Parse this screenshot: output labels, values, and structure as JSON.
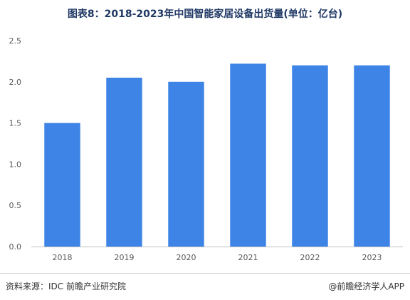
{
  "title": "图表8：2018-2023年中国智能家居设备出货量(单位：亿台)",
  "source": "资料来源：IDC 前瞻产业研究院",
  "credit": "@前瞻经济学人APP",
  "colors": {
    "bar": "#3d84e6",
    "axis": "#bfbfbf",
    "tick_text": "#595959",
    "title": "#1f3864"
  },
  "chart_data": {
    "type": "bar",
    "title": "图表8：2018-2023年中国智能家居设备出货量(单位：亿台)",
    "xlabel": "",
    "ylabel": "",
    "categories": [
      "2018",
      "2019",
      "2020",
      "2021",
      "2022",
      "2023"
    ],
    "values": [
      1.5,
      2.05,
      2.0,
      2.22,
      2.2,
      2.2
    ],
    "ylim": [
      0,
      2.5
    ],
    "yticks": [
      "0.0",
      "0.5",
      "1.0",
      "1.5",
      "2.0",
      "2.5"
    ],
    "grid": false,
    "legend": "none"
  }
}
